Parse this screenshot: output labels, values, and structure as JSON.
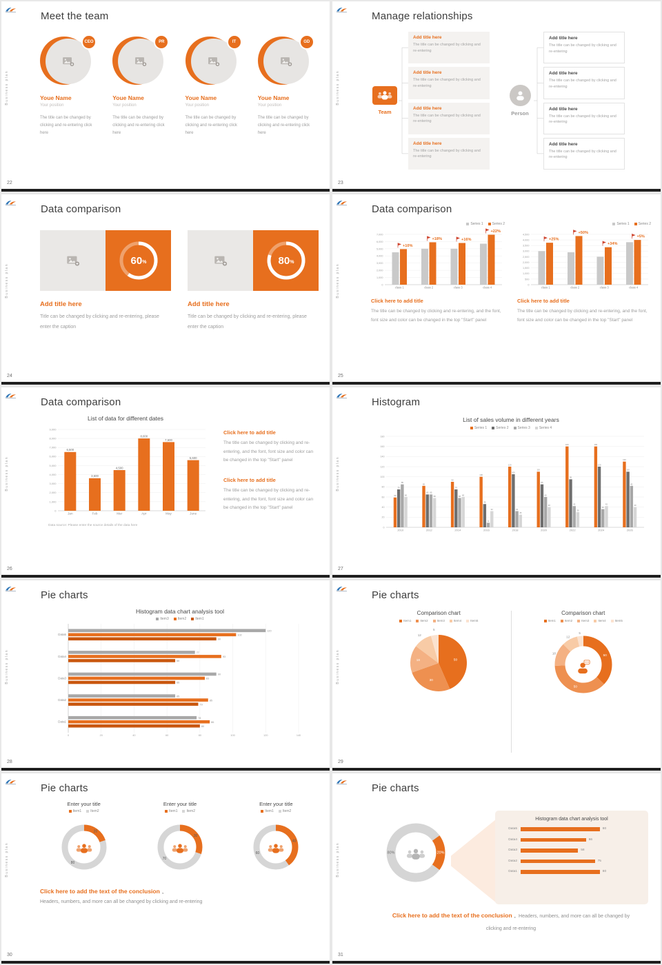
{
  "colors": {
    "accent": "#e76f1e",
    "accent_dark": "#c9570f",
    "grey_bar": "#c9c9c9",
    "grey_dark": "#6e6e6e",
    "grey_mid": "#a8a8a8",
    "grey_light": "#d6d6d6",
    "pie_shades": [
      "#e76f1e",
      "#ee9050",
      "#f4b183",
      "#f8cba6",
      "#fbe2cf"
    ],
    "panel_bg": "#f7efe8",
    "footer_bar": "#1f1f1f"
  },
  "common": {
    "sidebar_text": "Business plan",
    "logo": "brand-logo"
  },
  "slides": [
    {
      "page": "22",
      "type": "team",
      "title": "Meet the team",
      "members": [
        {
          "badge": "CEO",
          "name": "Youe Name",
          "position": "Your position",
          "desc": "The title can be changed by clicking and re-entering click here"
        },
        {
          "badge": "PR",
          "name": "Youe Name",
          "position": "Your position",
          "desc": "The title can be changed by clicking and re-entering click here"
        },
        {
          "badge": "IT",
          "name": "Youe Name",
          "position": "Your position",
          "desc": "The title can be changed by clicking and re-entering click here"
        },
        {
          "badge": "GD",
          "name": "Youe Name",
          "position": "Your position",
          "desc": "The title can be changed by clicking and re-entering click here"
        }
      ]
    },
    {
      "page": "23",
      "type": "relationships",
      "title": "Manage relationships",
      "groups": [
        {
          "label": "Team",
          "style": "orange",
          "icon": "people-group-icon",
          "items": [
            {
              "title": "Add title here",
              "text": "The title can be changed by clicking and re-entering"
            },
            {
              "title": "Add title here",
              "text": "The title can be changed by clicking and re-entering"
            },
            {
              "title": "Add title here",
              "text": "The title can be changed by clicking and re-entering"
            },
            {
              "title": "Add title here",
              "text": "The title can be changed by clicking and re-entering"
            }
          ]
        },
        {
          "label": "Person",
          "style": "grey",
          "icon": "person-icon",
          "items": [
            {
              "title": "Add title here",
              "text": "The title can be changed by clicking and re-entering"
            },
            {
              "title": "Add title here",
              "text": "The title can be changed by clicking and re-entering"
            },
            {
              "title": "Add title here",
              "text": "The title can be changed by clicking and re-entering"
            },
            {
              "title": "Add title here",
              "text": "The title can be changed by clicking and re-entering"
            }
          ]
        }
      ]
    },
    {
      "page": "24",
      "type": "percent_cards",
      "title": "Data comparison",
      "cards": [
        {
          "percent": 60,
          "title": "Add title here",
          "caption": "Title can be changed by clicking and re-entering, please enter the caption"
        },
        {
          "percent": 80,
          "title": "Add title here",
          "caption": "Title can be changed by clicking and re-entering, please enter the caption"
        }
      ]
    },
    {
      "page": "25",
      "type": "dual_bar",
      "title": "Data comparison",
      "chart_data": [
        {
          "type": "bar",
          "legend": [
            "Series 1",
            "Series 2"
          ],
          "categories": [
            "class 1",
            "class 2",
            "class 3",
            "class 4"
          ],
          "series": [
            {
              "name": "Series 1",
              "values": [
                4500,
                5000,
                5000,
                5700
              ]
            },
            {
              "name": "Series 2",
              "values": [
                4950,
                5900,
                5800,
                6950
              ]
            }
          ],
          "callouts": [
            "+10%",
            "+18%",
            "+16%",
            "+22%"
          ],
          "ymax": 7000,
          "yticks": [
            "7,000",
            "6,000",
            "5,000",
            "4,000",
            "3,000",
            "2,000",
            "1,000",
            "0"
          ],
          "note_title": "Click here to add title",
          "note_text": "The title can be changed by clicking and re-entering, and the font, font size and color can be changed in the top \"Start\" panel"
        },
        {
          "type": "bar",
          "legend": [
            "Series 1",
            "Series 2"
          ],
          "categories": [
            "class 1",
            "class 2",
            "class 3",
            "class 4"
          ],
          "series": [
            {
              "name": "Series 1",
              "values": [
                3000,
                2900,
                2500,
                3800
              ]
            },
            {
              "name": "Series 2",
              "values": [
                3750,
                4350,
                3350,
                4000
              ]
            }
          ],
          "callouts": [
            "+25%",
            "+50%",
            "+34%",
            "+5%"
          ],
          "ymax": 4500,
          "yticks": [
            "4,500",
            "4,000",
            "3,500",
            "3,000",
            "2,500",
            "2,000",
            "1,500",
            "1,000",
            "500",
            "0"
          ],
          "note_title": "Click here to add title",
          "note_text": "The title can be changed by clicking and re-entering, and the font, font size and color can be changed in the top \"Start\" panel"
        }
      ]
    },
    {
      "page": "26",
      "type": "bar_notes",
      "title": "Data comparison",
      "chart_data": {
        "type": "bar",
        "title": "List of data for different dates",
        "categories": [
          "Jan",
          "Feb",
          "Mar",
          "Apr",
          "May",
          "June"
        ],
        "values": [
          6500,
          3600,
          4500,
          8000,
          7600,
          5600
        ],
        "value_labels": [
          "6,500",
          "3,600",
          "4,500",
          "8,000",
          "7,600",
          "5,600"
        ],
        "ymax": 9000,
        "yticks": [
          "9,000",
          "8,000",
          "7,000",
          "6,000",
          "5,000",
          "4,000",
          "3,000",
          "2,000",
          "1,000",
          "0"
        ],
        "source": "Data source: Please enter the source details of the data here"
      },
      "notes": [
        {
          "title": "Click here to add title",
          "text": "The title can be changed by clicking and re-entering, and the font, font size and color can be changed in the top \"Start\" panel"
        },
        {
          "title": "Click here to add title",
          "text": "The title can be changed by clicking and re-entering, and the font, font size and color can be changed in the top \"Start\" panel"
        }
      ]
    },
    {
      "page": "27",
      "type": "histogram",
      "title": "Histogram",
      "chart_data": {
        "type": "bar",
        "title": "List of sales volume in different years",
        "legend": [
          "Series 1",
          "Series 2",
          "Series 3",
          "Series 4"
        ],
        "categories": [
          "2010",
          "2012",
          "2014",
          "2016",
          "2018",
          "2020",
          "2022",
          "2024",
          "2026"
        ],
        "series": [
          {
            "name": "Series 1",
            "values": [
              59,
              82,
              90,
              100,
              120,
              110,
              160,
              160,
              130
            ]
          },
          {
            "name": "Series 2",
            "values": [
              75,
              65,
              75,
              46,
              105,
              85,
              95,
              120,
              110
            ]
          },
          {
            "name": "Series 3",
            "values": [
              85,
              65,
              58,
              9,
              32,
              60,
              42,
              36,
              82
            ]
          },
          {
            "name": "Series 4",
            "values": [
              60,
              58,
              60,
              32,
              25,
              40,
              30,
              42,
              40
            ]
          }
        ],
        "ymax": 180,
        "yticks": [
          "180",
          "160",
          "140",
          "120",
          "100",
          "80",
          "60",
          "40",
          "20",
          "0"
        ]
      }
    },
    {
      "page": "28",
      "type": "hbar",
      "title": "Pie charts",
      "chart_data": {
        "type": "bar",
        "orientation": "horizontal",
        "title": "Histogram data chart analysis tool",
        "legend": [
          "Item3",
          "Item2",
          "Item1"
        ],
        "categories": [
          "Data5",
          "Data4",
          "Data3",
          "Data2",
          "Data1"
        ],
        "series": [
          {
            "name": "Item3",
            "values": [
              120,
              77,
              90,
              65,
              78
            ]
          },
          {
            "name": "Item2",
            "values": [
              102,
              93,
              83,
              85,
              86
            ]
          },
          {
            "name": "Item1",
            "values": [
              90,
              65,
              65,
              79,
              80
            ]
          }
        ],
        "xmax": 140,
        "xticks": [
          0,
          20,
          40,
          60,
          80,
          100,
          120,
          140
        ]
      }
    },
    {
      "page": "29",
      "type": "pies",
      "title": "Pie charts",
      "chart_data": [
        {
          "type": "pie",
          "title": "Comparison chart",
          "legend": [
            "Item1",
            "Item2",
            "Item3",
            "Item4",
            "Item5"
          ],
          "values": [
            50,
            30,
            18,
            12,
            5
          ]
        },
        {
          "type": "pie",
          "variant": "donut",
          "title": "Comparison chart",
          "legend": [
            "Item1",
            "Item2",
            "Item3",
            "Item4",
            "Item5"
          ],
          "values": [
            50,
            50,
            18,
            12,
            5
          ]
        }
      ]
    },
    {
      "page": "30",
      "type": "donut_row",
      "title": "Pie charts",
      "chart_data": [
        {
          "type": "pie",
          "variant": "donut",
          "title": "Enter your title",
          "legend": [
            "Item1",
            "Item2"
          ],
          "values": [
            20,
            80
          ]
        },
        {
          "type": "pie",
          "variant": "donut",
          "title": "Enter your title",
          "legend": [
            "Item1",
            "Item2"
          ],
          "values": [
            30,
            70
          ]
        },
        {
          "type": "pie",
          "variant": "donut",
          "title": "Enter your title",
          "legend": [
            "Item1",
            "Item2"
          ],
          "values": [
            40,
            60
          ]
        }
      ],
      "conclusion_title": "Click here to add the text of the conclusion",
      "conclusion_sep": ",",
      "conclusion_text": "Headers, numbers, and more can all be changed by clicking and re-entering"
    },
    {
      "page": "31",
      "type": "donut_panel",
      "title": "Pie charts",
      "chart_data": [
        {
          "type": "pie",
          "variant": "donut",
          "values": [
            20,
            80
          ],
          "labels": [
            "20%",
            "80%"
          ]
        },
        {
          "type": "bar",
          "orientation": "horizontal",
          "title": "Histogram data chart analysis tool",
          "categories": [
            "Data5",
            "Data4",
            "Data3",
            "Data2",
            "Data1"
          ],
          "values": [
            80,
            66,
            58,
            75,
            80
          ],
          "xmax": 100
        }
      ],
      "conclusion_title": "Click here to add the text of the conclusion",
      "conclusion_sep": ",",
      "conclusion_text": "Headers, numbers, and more can all be changed by clicking and re-entering"
    }
  ]
}
